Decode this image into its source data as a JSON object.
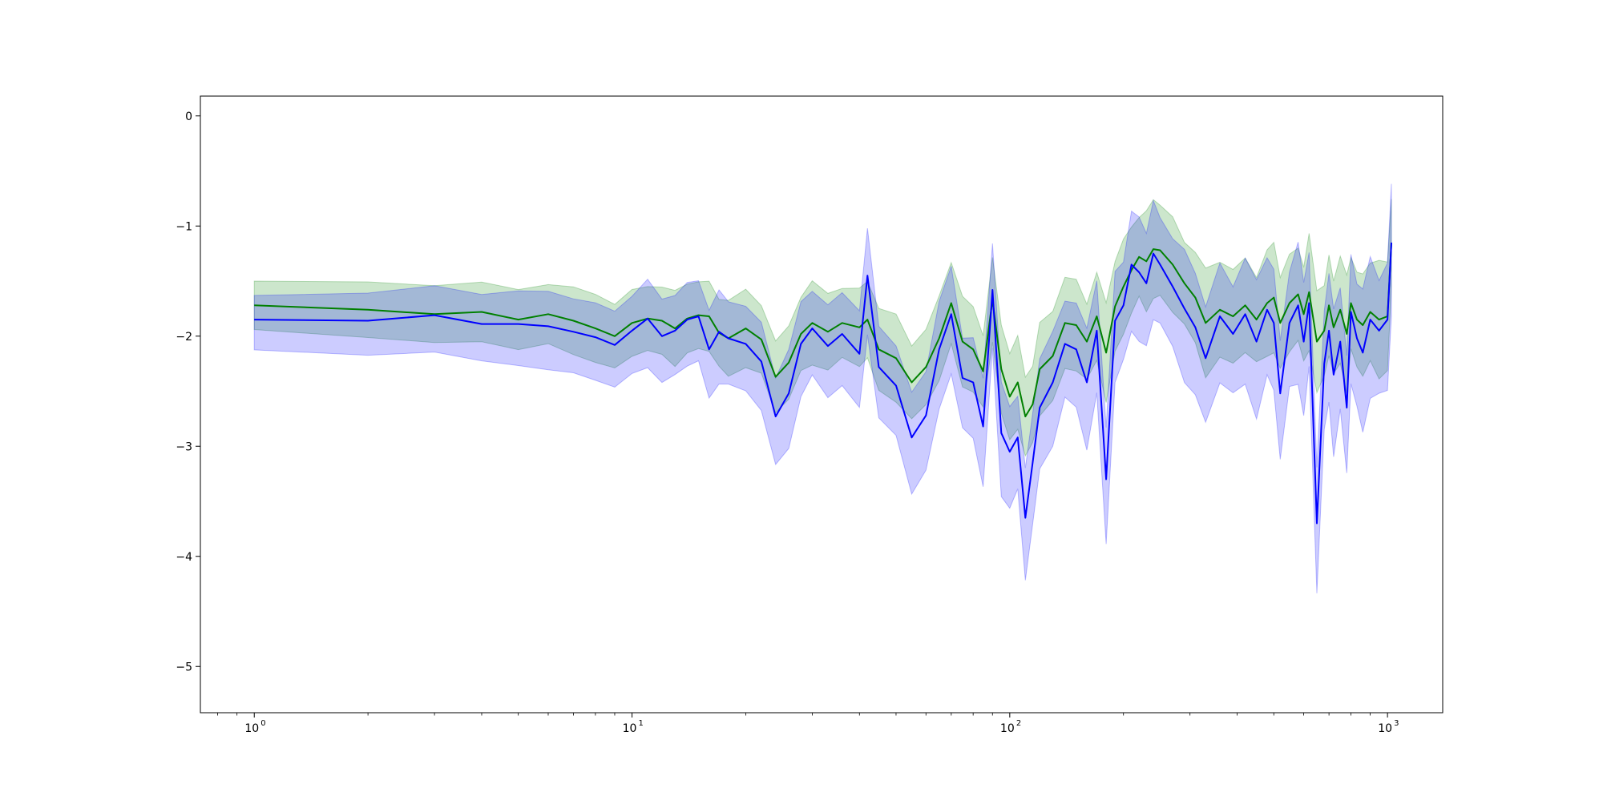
{
  "chart_data": {
    "type": "line",
    "title": "",
    "xlabel": "",
    "ylabel": "",
    "xscale": "log",
    "xlim": [
      0.72,
      1400
    ],
    "ylim": [
      -5.42,
      0.18
    ],
    "grid": false,
    "legend": "none",
    "x_ticks": [
      {
        "base": "10",
        "exp": "0",
        "value": 1
      },
      {
        "base": "10",
        "exp": "1",
        "value": 10
      },
      {
        "base": "10",
        "exp": "2",
        "value": 100
      },
      {
        "base": "10",
        "exp": "3",
        "value": 1000
      }
    ],
    "y_ticks": [
      {
        "label": "0",
        "value": 0
      },
      {
        "label": "−1",
        "value": -1
      },
      {
        "label": "−2",
        "value": -2
      },
      {
        "label": "−3",
        "value": -3
      },
      {
        "label": "−4",
        "value": -4
      },
      {
        "label": "−5",
        "value": -5
      }
    ],
    "x": [
      1,
      2,
      3,
      4,
      5,
      6,
      7,
      8,
      9,
      10,
      11,
      12,
      13,
      14,
      15,
      16,
      17,
      18,
      20,
      22,
      24,
      26,
      28,
      30,
      33,
      36,
      40,
      42,
      45,
      50,
      55,
      60,
      65,
      70,
      75,
      80,
      85,
      90,
      95,
      100,
      105,
      110,
      115,
      120,
      130,
      140,
      150,
      160,
      170,
      180,
      190,
      200,
      210,
      220,
      230,
      240,
      250,
      270,
      290,
      310,
      330,
      360,
      390,
      420,
      450,
      480,
      500,
      520,
      550,
      580,
      600,
      620,
      650,
      680,
      700,
      720,
      750,
      780,
      800,
      830,
      860,
      900,
      950,
      1000,
      1024
    ],
    "series": [
      {
        "color": "#008000",
        "values": [
          -1.72,
          -1.76,
          -1.8,
          -1.78,
          -1.85,
          -1.8,
          -1.86,
          -1.93,
          -2.0,
          -1.88,
          -1.84,
          -1.86,
          -1.93,
          -1.84,
          -1.81,
          -1.82,
          -1.97,
          -2.02,
          -1.93,
          -2.03,
          -2.37,
          -2.24,
          -1.98,
          -1.88,
          -1.96,
          -1.88,
          -1.92,
          -1.85,
          -2.12,
          -2.2,
          -2.42,
          -2.28,
          -2.02,
          -1.7,
          -2.05,
          -2.12,
          -2.32,
          -1.67,
          -2.3,
          -2.55,
          -2.42,
          -2.73,
          -2.62,
          -2.3,
          -2.18,
          -1.88,
          -1.9,
          -2.05,
          -1.82,
          -2.15,
          -1.73,
          -1.55,
          -1.4,
          -1.28,
          -1.32,
          -1.21,
          -1.22,
          -1.35,
          -1.52,
          -1.65,
          -1.88,
          -1.76,
          -1.82,
          -1.72,
          -1.85,
          -1.7,
          -1.65,
          -1.88,
          -1.7,
          -1.62,
          -1.8,
          -1.6,
          -2.05,
          -1.95,
          -1.72,
          -1.92,
          -1.76,
          -1.98,
          -1.7,
          -1.85,
          -1.9,
          -1.78,
          -1.85,
          -1.82,
          -1.15
        ]
      },
      {
        "color": "#0000ff",
        "values": [
          -1.85,
          -1.86,
          -1.81,
          -1.89,
          -1.89,
          -1.91,
          -1.96,
          -2.01,
          -2.08,
          -1.95,
          -1.84,
          -2.0,
          -1.95,
          -1.85,
          -1.82,
          -2.12,
          -1.96,
          -2.02,
          -2.07,
          -2.23,
          -2.73,
          -2.52,
          -2.07,
          -1.93,
          -2.09,
          -1.98,
          -2.16,
          -1.45,
          -2.28,
          -2.45,
          -2.92,
          -2.72,
          -2.12,
          -1.8,
          -2.38,
          -2.42,
          -2.82,
          -1.58,
          -2.88,
          -3.05,
          -2.92,
          -3.65,
          -3.15,
          -2.65,
          -2.42,
          -2.07,
          -2.12,
          -2.42,
          -1.95,
          -3.3,
          -1.86,
          -1.72,
          -1.35,
          -1.42,
          -1.52,
          -1.25,
          -1.35,
          -1.55,
          -1.75,
          -1.92,
          -2.2,
          -1.82,
          -1.98,
          -1.8,
          -2.05,
          -1.76,
          -1.88,
          -2.52,
          -1.88,
          -1.72,
          -2.05,
          -1.7,
          -3.7,
          -2.25,
          -1.95,
          -2.35,
          -2.05,
          -2.65,
          -1.78,
          -2.02,
          -2.15,
          -1.85,
          -1.95,
          -1.85,
          -1.15
        ]
      }
    ]
  }
}
